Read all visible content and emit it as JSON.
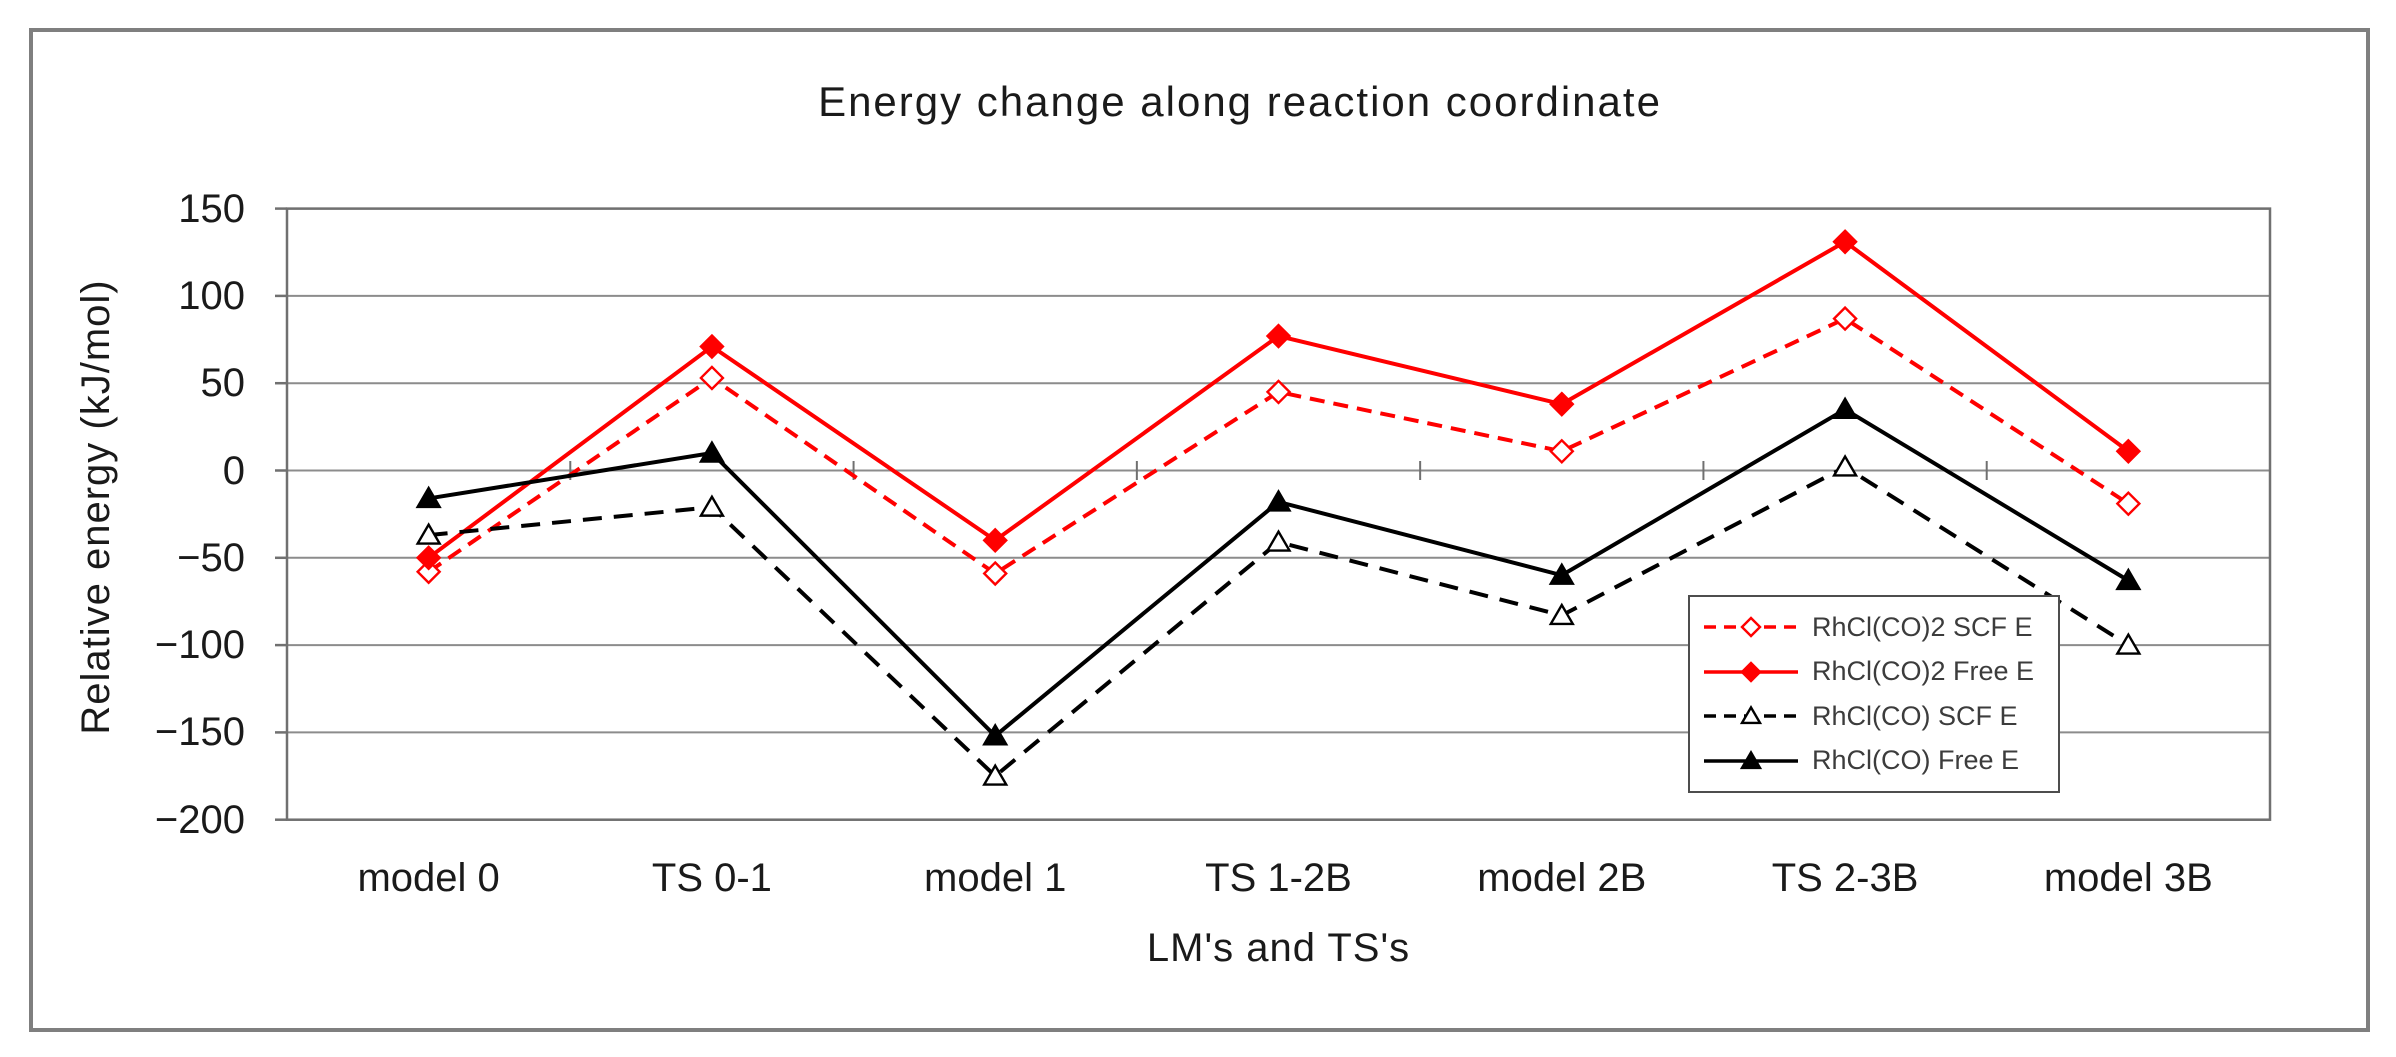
{
  "window": {
    "background": "#ffffff",
    "frame_border_color": "#7f7f7f"
  },
  "chart_data": {
    "type": "line",
    "title": "Energy change along reaction coordinate",
    "xlabel": "LM's and TS's",
    "ylabel": "Relative energy (kJ/mol)",
    "ylim": [
      -200,
      150
    ],
    "yticks": [
      150,
      100,
      50,
      0,
      -50,
      -100,
      -150,
      -200
    ],
    "grid": true,
    "gridline_color": "#8c8c8c",
    "axis_color": "#707070",
    "legend_position": "inside-right",
    "categories": [
      "model 0",
      "TS 0-1",
      "model 1",
      "TS 1-2B",
      "model 2B",
      "TS 2-3B",
      "model 3B"
    ],
    "series": [
      {
        "name": "RhCl(CO)2 SCF E",
        "color": "#ff0000",
        "line": "dashed",
        "marker": "diamond-open",
        "values": [
          -58,
          53,
          -59,
          45,
          11,
          87,
          -19
        ]
      },
      {
        "name": "RhCl(CO)2 Free E",
        "color": "#ff0000",
        "line": "solid",
        "marker": "diamond-filled",
        "values": [
          -50,
          71,
          -40,
          77,
          38,
          131,
          11
        ]
      },
      {
        "name": "RhCl(CO) SCF E",
        "color": "#000000",
        "line": "dashed",
        "marker": "triangle-open",
        "values": [
          -37,
          -21,
          -175,
          -41,
          -83,
          2,
          -100
        ]
      },
      {
        "name": "RhCl(CO) Free E",
        "color": "#000000",
        "line": "solid",
        "marker": "triangle-filled",
        "values": [
          -16,
          10,
          -152,
          -18,
          -60,
          35,
          -63
        ]
      }
    ]
  }
}
